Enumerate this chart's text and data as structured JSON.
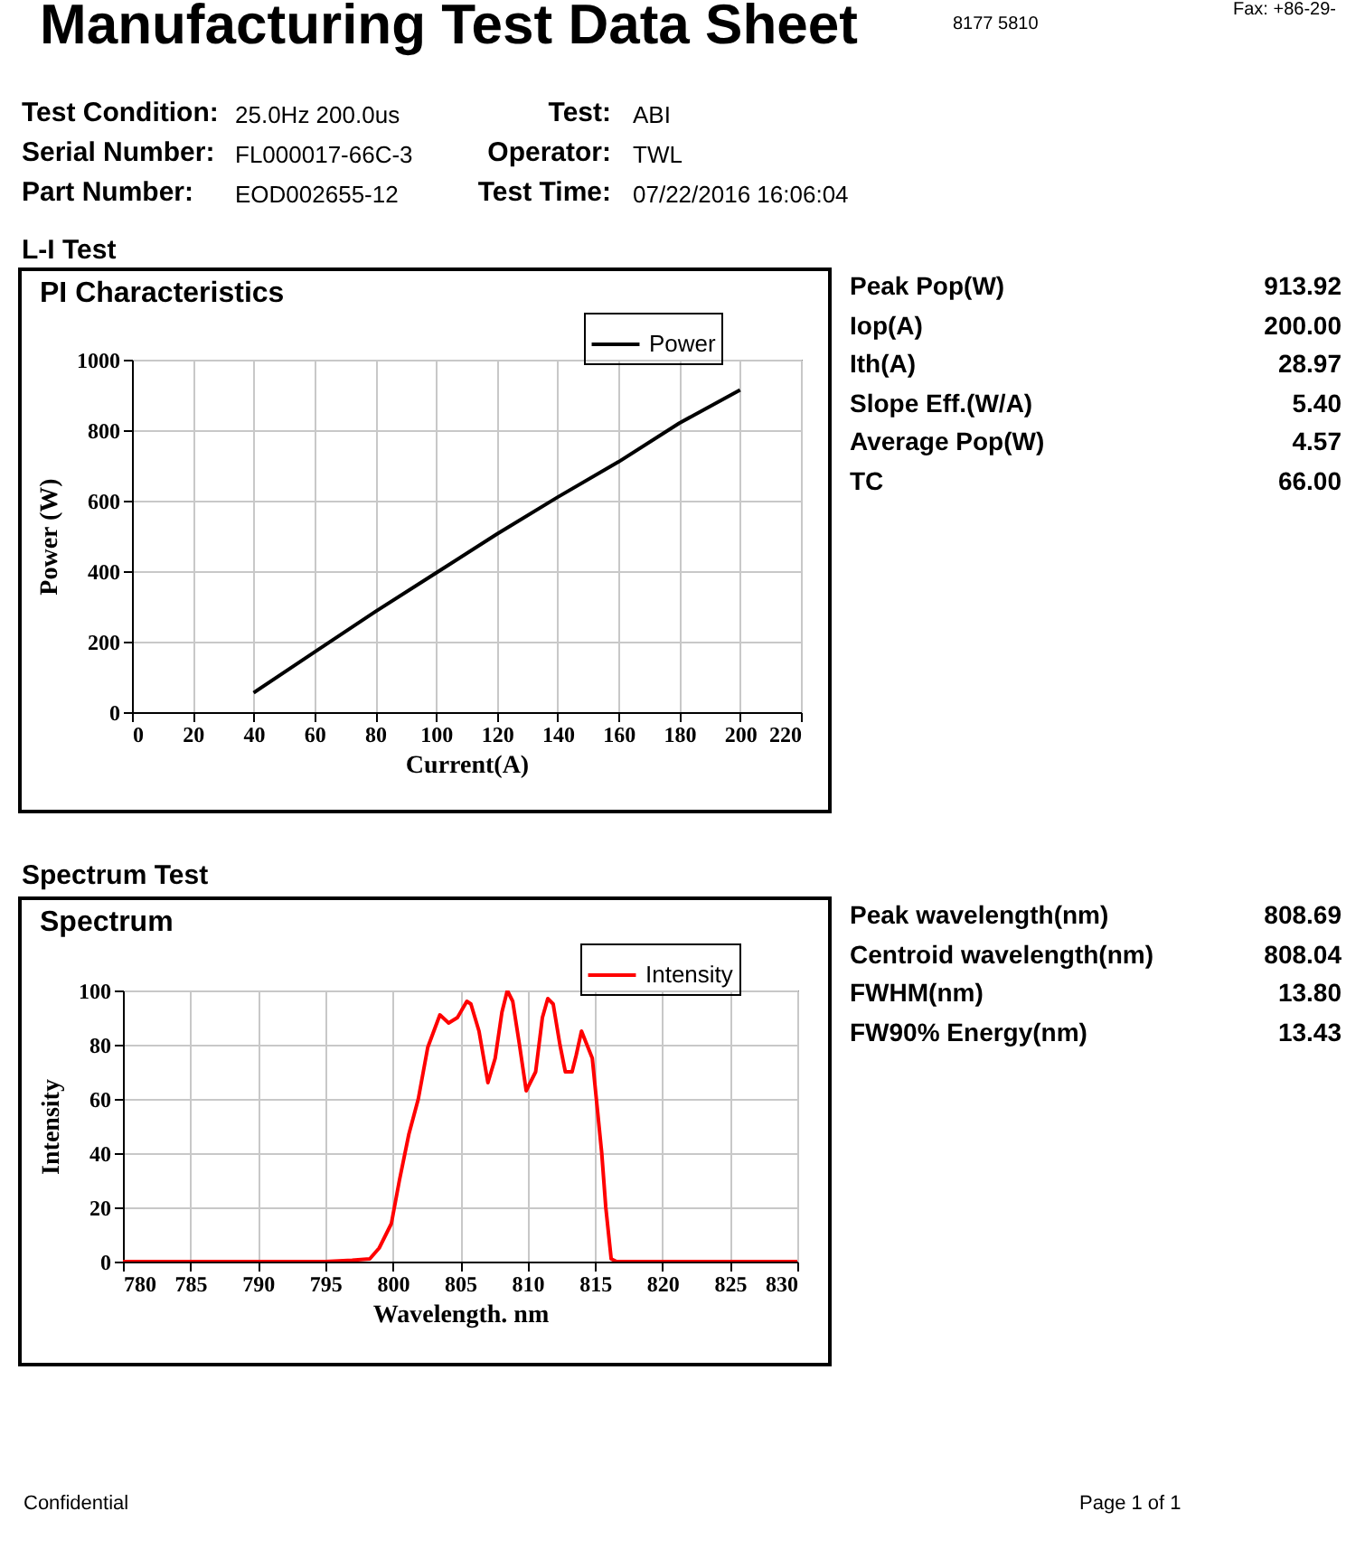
{
  "chart_data": [
    {
      "type": "other",
      "title": "Manufacturing Test Data Sheet",
      "annotations": [
        "Test Condition:",
        "25.0Hz 200.0us",
        "Test:",
        "ABI",
        "Serial Number:",
        "FL000017-66C-3",
        "Operator:",
        "TWL",
        "Part Number:",
        "EOD002655-12",
        "Test Time:",
        "07/22/2016 16:06:04"
      ]
    },
    {
      "type": "other",
      "annotations": [
        "8177  5810",
        "Fax: +86-29-"
      ]
    },
    {
      "type": "line",
      "title": "L-I Test",
      "subtitle": "PI Characteristics",
      "xlabel": "Current(A)",
      "ylabel": "Power (W)",
      "x": [
        40,
        60,
        80,
        100,
        120,
        140,
        160,
        180,
        200
      ],
      "series": [
        {
          "name": "Power",
          "color": "#000000",
          "values": [
            55,
            170,
            285,
            395,
            505,
            610,
            710,
            820,
            914
          ]
        }
      ],
      "xlim": [
        0,
        220
      ],
      "xticks": [
        0,
        20,
        40,
        60,
        80,
        100,
        120,
        140,
        160,
        180,
        200,
        220
      ],
      "ylim": [
        0,
        1000
      ],
      "yticks": [
        0,
        200,
        400,
        600,
        800,
        1000
      ],
      "grid": true,
      "legend": "top right",
      "line_style": "solid"
    },
    {
      "type": "other",
      "annotations": [
        "Peak Pop(W)",
        "913.92",
        "Iop(A)",
        "200.00",
        "Ith(A)",
        "28.97",
        "Slope Eff.(W/A)",
        "5.40",
        "Average Pop(W)",
        "4.57",
        "TC",
        "66.00"
      ]
    },
    {
      "type": "line",
      "title": "Spectrum Test",
      "subtitle": "Spectrum",
      "xlabel": "Wavelength. nm",
      "ylabel": "Intensity",
      "x": [
        780,
        795,
        797,
        798.3,
        799,
        799.9,
        800.5,
        801.2,
        801.9,
        802.6,
        803.5,
        804.15,
        804.8,
        805.5,
        805.8,
        806.4,
        807.06,
        807.6,
        808.1,
        808.5,
        808.9,
        809.4,
        809.9,
        810.6,
        811.1,
        811.5,
        811.9,
        812.4,
        812.8,
        813.3,
        813.6,
        814.0,
        814.4,
        814.8,
        815.1,
        815.5,
        815.8,
        816.2,
        816.6,
        830
      ],
      "series": [
        {
          "name": "Intensity",
          "color": "#ff0000",
          "values": [
            0,
            0,
            0.5,
            1,
            5,
            14,
            30,
            47,
            60,
            79,
            91,
            88,
            90,
            96,
            95,
            85,
            66,
            75,
            92,
            100,
            96,
            80,
            63,
            70,
            90,
            97,
            95,
            80,
            70,
            70,
            76,
            85,
            80,
            75,
            60,
            40,
            20,
            1,
            0,
            0
          ]
        }
      ],
      "xlim": [
        780,
        830
      ],
      "xticks": [
        780,
        785,
        790,
        795,
        800,
        805,
        810,
        815,
        820,
        825,
        830
      ],
      "ylim": [
        0,
        100
      ],
      "yticks": [
        0,
        20,
        40,
        60,
        80,
        100
      ],
      "grid": true,
      "legend": "top right",
      "line_style": "solid"
    },
    {
      "type": "other",
      "annotations": [
        "Peak wavelength(nm)",
        "808.69",
        "Centroid wavelength(nm)",
        "808.04",
        "FWHM(nm)",
        "13.80",
        "FW90% Energy(nm)",
        "13.43"
      ]
    },
    {
      "type": "other",
      "annotations": [
        "Confidential",
        "Page 1 of 1"
      ]
    }
  ]
}
